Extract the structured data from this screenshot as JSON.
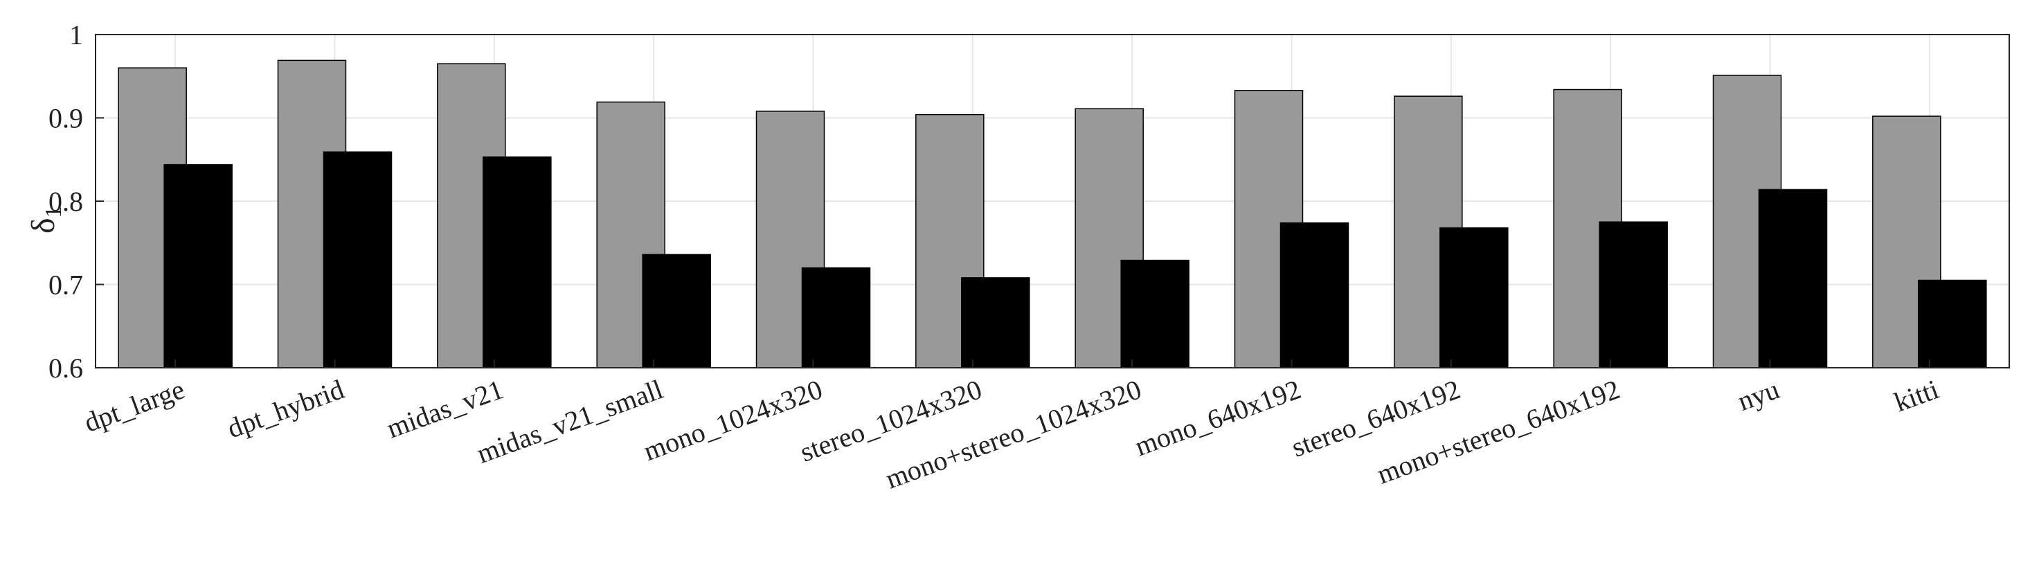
{
  "chart_data": {
    "type": "bar",
    "categories": [
      "dpt_large",
      "dpt_hybrid",
      "midas_v21",
      "midas_v21_small",
      "mono_1024x320",
      "stereo_1024x320",
      "mono+stereo_1024x320",
      "mono_640x192",
      "stereo_640x192",
      "mono+stereo_640x192",
      "nyu",
      "kitti"
    ],
    "series": [
      {
        "color": "#999999",
        "values": [
          0.96,
          0.969,
          0.965,
          0.919,
          0.908,
          0.904,
          0.911,
          0.933,
          0.926,
          0.934,
          0.951,
          0.902
        ]
      },
      {
        "color": "#000000",
        "values": [
          0.844,
          0.859,
          0.853,
          0.736,
          0.72,
          0.708,
          0.729,
          0.774,
          0.768,
          0.775,
          0.814,
          0.705
        ]
      }
    ],
    "ylabel": "δ",
    "ylabel_subscript": "1",
    "ylim": [
      0.6,
      1.0
    ],
    "yticks": [
      0.6,
      0.7,
      0.8,
      0.9,
      1
    ],
    "ytick_labels": [
      "0.6",
      "0.7",
      "0.8",
      "0.9",
      "1"
    ],
    "grid": true,
    "legend": "none"
  }
}
